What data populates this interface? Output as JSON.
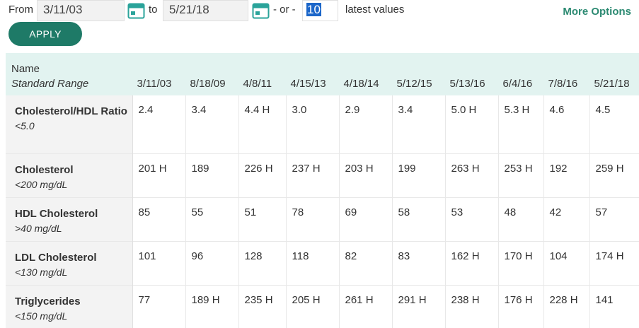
{
  "filter": {
    "from_label": "From",
    "from_value": "3/11/03",
    "to_label": "to",
    "to_value": "5/21/18",
    "or_label": "- or -",
    "count_value": "10",
    "latest_label": "latest values",
    "more_options_label": "More Options",
    "apply_label": "APPLY"
  },
  "colors": {
    "accent": "#1e7a67",
    "link": "#2c8a72",
    "header_bg": "#e2f3f0"
  },
  "table": {
    "name_header": "Name",
    "range_header": "Standard Range",
    "dates": [
      "3/11/03",
      "8/18/09",
      "4/8/11",
      "4/15/13",
      "4/18/14",
      "5/12/15",
      "5/13/16",
      "6/4/16",
      "7/8/16",
      "5/21/18"
    ],
    "rows": [
      {
        "name": "Cholesterol/HDL Ratio",
        "range": "<5.0",
        "values": [
          "2.4",
          "3.4",
          "4.4 H",
          "3.0",
          "2.9",
          "3.4",
          "5.0 H",
          "5.3 H",
          "4.6",
          "4.5"
        ]
      },
      {
        "name": "Cholesterol",
        "range": "<200 mg/dL",
        "values": [
          "201 H",
          "189",
          "226 H",
          "237 H",
          "203 H",
          "199",
          "263 H",
          "253 H",
          "192",
          "259 H"
        ]
      },
      {
        "name": "HDL Cholesterol",
        "range": ">40 mg/dL",
        "values": [
          "85",
          "55",
          "51",
          "78",
          "69",
          "58",
          "53",
          "48",
          "42",
          "57"
        ]
      },
      {
        "name": "LDL Cholesterol",
        "range": "<130 mg/dL",
        "values": [
          "101",
          "96",
          "128",
          "118",
          "82",
          "83",
          "162 H",
          "170 H",
          "104",
          "174 H"
        ]
      },
      {
        "name": "Triglycerides",
        "range": "<150 mg/dL",
        "values": [
          "77",
          "189 H",
          "235 H",
          "205 H",
          "261 H",
          "291 H",
          "238 H",
          "176 H",
          "228 H",
          "141"
        ]
      }
    ]
  }
}
